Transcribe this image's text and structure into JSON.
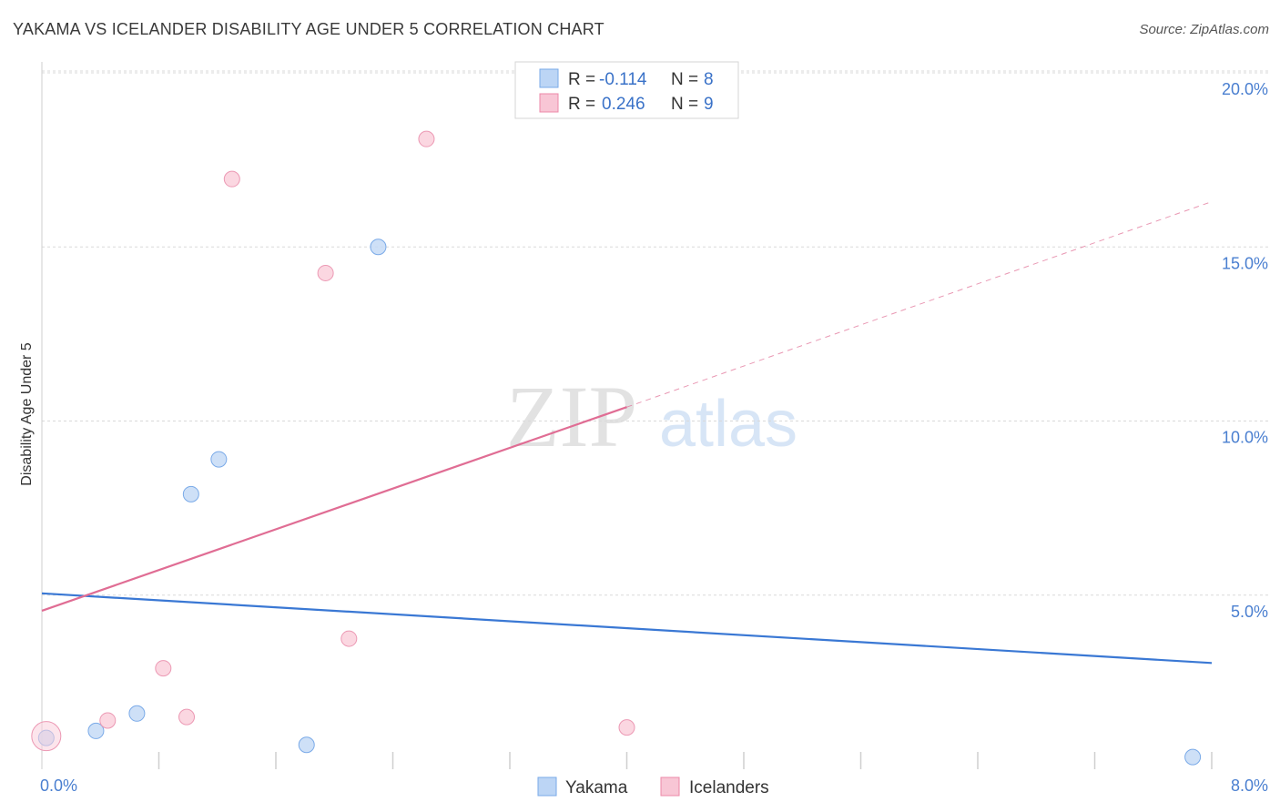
{
  "title": "YAKAMA VS ICELANDER DISABILITY AGE UNDER 5 CORRELATION CHART",
  "source": "Source: ZipAtlas.com",
  "watermark": {
    "zip": "ZIP",
    "atlas": "atlas"
  },
  "chart_data": {
    "type": "scatter",
    "title": "YAKAMA VS ICELANDER DISABILITY AGE UNDER 5 CORRELATION CHART",
    "ylabel": "Disability Age Under 5",
    "xlabel": "",
    "xlim": [
      0,
      8
    ],
    "ylim": [
      0,
      20.5
    ],
    "y_ticks": [
      {
        "value": 5,
        "label": "5.0%"
      },
      {
        "value": 10,
        "label": "10.0%"
      },
      {
        "value": 15,
        "label": "15.0%"
      },
      {
        "value": 20,
        "label": "20.0%"
      }
    ],
    "x_tick_labels": {
      "min": "0.0%",
      "max": "8.0%"
    },
    "x_minor_ticks": [
      0.8,
      1.6,
      2.4,
      3.2,
      4.0,
      4.8,
      5.6,
      6.4,
      7.2,
      8.0
    ],
    "legend": [
      {
        "name": "Yakama",
        "r_label": "R =",
        "r": "-0.114",
        "n_label": "N =",
        "n": "8",
        "color": "#7aaae8",
        "fill": "#bcd5f5"
      },
      {
        "name": "Icelanders",
        "r_label": "R =",
        "r": "0.246",
        "n_label": "N =",
        "n": "9",
        "color": "#ec88a8",
        "fill": "#f8c6d5"
      }
    ],
    "series": [
      {
        "name": "Yakama",
        "points": [
          [
            0.03,
            0.9
          ],
          [
            0.37,
            1.1
          ],
          [
            0.65,
            1.6
          ],
          [
            1.02,
            7.9
          ],
          [
            1.21,
            8.9
          ],
          [
            2.3,
            15.0
          ],
          [
            1.81,
            0.7
          ],
          [
            7.87,
            0.35
          ]
        ],
        "trend": {
          "x": [
            0.0,
            8.0
          ],
          "y": [
            5.05,
            3.05
          ],
          "dashed_to": null
        }
      },
      {
        "name": "Icelanders",
        "points": [
          [
            0.03,
            0.95
          ],
          [
            0.45,
            1.4
          ],
          [
            0.83,
            2.9
          ],
          [
            0.99,
            1.5
          ],
          [
            1.3,
            16.95
          ],
          [
            1.94,
            14.25
          ],
          [
            2.1,
            3.75
          ],
          [
            2.63,
            18.1
          ],
          [
            4.0,
            1.2
          ]
        ],
        "trend": {
          "x": [
            0.0,
            4.0
          ],
          "y": [
            4.55,
            10.4
          ],
          "dashed_to": [
            8.0,
            16.3
          ]
        }
      }
    ]
  }
}
